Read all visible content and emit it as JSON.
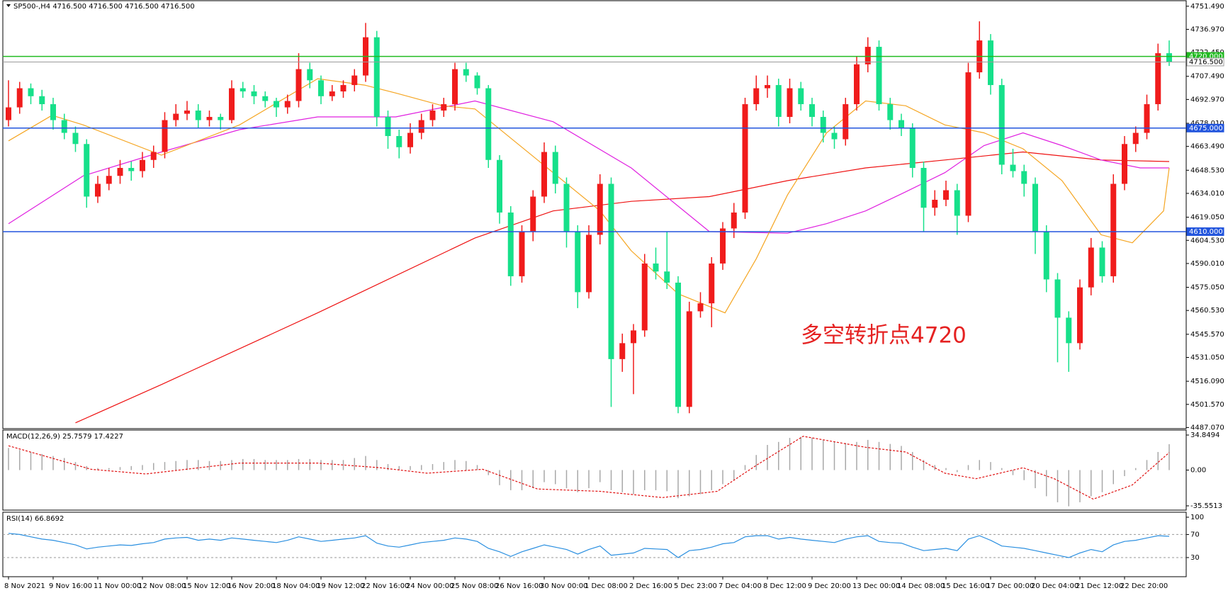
{
  "chart_data": {
    "type": "candlestick",
    "title": "SP500-,H4  4716.500 4716.500 4716.500 4716.500",
    "annotation": "多空转折点4720",
    "up_color": "#f01c1c",
    "down_color": "#16e08a",
    "ylim": [
      4486.8,
      4754.5
    ],
    "yticks": [
      {
        "value": 4751.49,
        "label": "4751.490"
      },
      {
        "value": 4736.97,
        "label": "4736.970"
      },
      {
        "value": 4722.45,
        "label": "4722.450"
      },
      {
        "value": 4707.49,
        "label": "4707.490"
      },
      {
        "value": 4692.97,
        "label": "4692.970"
      },
      {
        "value": 4678.01,
        "label": "4678.010"
      },
      {
        "value": 4663.49,
        "label": "4663.490"
      },
      {
        "value": 4648.53,
        "label": "4648.530"
      },
      {
        "value": 4634.01,
        "label": "4634.010"
      },
      {
        "value": 4619.05,
        "label": "4619.050"
      },
      {
        "value": 4604.53,
        "label": "4604.530"
      },
      {
        "value": 4590.01,
        "label": "4590.010"
      },
      {
        "value": 4575.05,
        "label": "4575.050"
      },
      {
        "value": 4560.53,
        "label": "4560.530"
      },
      {
        "value": 4545.57,
        "label": "4545.570"
      },
      {
        "value": 4531.05,
        "label": "4531.050"
      },
      {
        "value": 4516.09,
        "label": "4516.090"
      },
      {
        "value": 4501.57,
        "label": "4501.570"
      },
      {
        "value": 4487.07,
        "label": "4487.070"
      }
    ],
    "levels": [
      {
        "value": 4720,
        "label": "4720.000",
        "color": "#22bb22"
      },
      {
        "value": 4716.5,
        "label": "4716.500",
        "color": "#9a9a9a"
      },
      {
        "value": 4675,
        "label": "4675.000",
        "color": "#2255dd"
      },
      {
        "value": 4610,
        "label": "4610.000",
        "color": "#2255dd"
      }
    ],
    "categories": [
      "8 Nov 2021",
      null,
      null,
      null,
      "9 Nov 16:00",
      null,
      null,
      null,
      "11 Nov 00:00",
      null,
      null,
      null,
      "12 Nov 08:00",
      null,
      null,
      null,
      "15 Nov 12:00",
      null,
      null,
      null,
      "16 Nov 20:00",
      null,
      null,
      null,
      "18 Nov 04:00",
      null,
      null,
      null,
      "19 Nov 12:00",
      null,
      null,
      null,
      "22 Nov 16:00",
      null,
      null,
      null,
      "24 Nov 00:00",
      null,
      null,
      null,
      "25 Nov 08:00",
      null,
      null,
      null,
      "26 Nov 16:00",
      null,
      null,
      null,
      "30 Nov 00:00",
      null,
      null,
      null,
      "1 Dec 08:00",
      null,
      null,
      null,
      "2 Dec 16:00",
      null,
      null,
      null,
      "5 Dec 23:00",
      null,
      null,
      null,
      "7 Dec 04:00",
      null,
      null,
      null,
      "8 Dec 12:00",
      null,
      null,
      null,
      "9 Dec 20:00",
      null,
      null,
      null,
      "13 Dec 00:00",
      null,
      null,
      null,
      "14 Dec 08:00",
      null,
      null,
      null,
      "15 Dec 16:00",
      null,
      null,
      null,
      "17 Dec 00:00",
      null,
      null,
      null,
      "20 Dec 04:00",
      null,
      null,
      null,
      "21 Dec 12:00",
      null,
      null,
      null,
      "22 Dec 20:00",
      null,
      null,
      null,
      null
    ],
    "candles": [
      [
        4680,
        4705,
        4676,
        4688
      ],
      [
        4688,
        4704,
        4684,
        4700
      ],
      [
        4700,
        4703,
        4690,
        4695
      ],
      [
        4695,
        4699,
        4686,
        4690
      ],
      [
        4690,
        4694,
        4674,
        4680
      ],
      [
        4680,
        4684,
        4668,
        4672
      ],
      [
        4672,
        4676,
        4660,
        4665
      ],
      [
        4665,
        4668,
        4625,
        4632
      ],
      [
        4632,
        4645,
        4628,
        4640
      ],
      [
        4640,
        4650,
        4636,
        4645
      ],
      [
        4645,
        4655,
        4640,
        4650
      ],
      [
        4650,
        4654,
        4642,
        4648
      ],
      [
        4648,
        4660,
        4644,
        4655
      ],
      [
        4655,
        4664,
        4650,
        4660
      ],
      [
        4660,
        4685,
        4656,
        4680
      ],
      [
        4680,
        4690,
        4676,
        4684
      ],
      [
        4684,
        4692,
        4680,
        4686
      ],
      [
        4686,
        4690,
        4675,
        4680
      ],
      [
        4680,
        4686,
        4676,
        4682
      ],
      [
        4682,
        4684,
        4674,
        4680
      ],
      [
        4680,
        4705,
        4678,
        4700
      ],
      [
        4700,
        4704,
        4694,
        4698
      ],
      [
        4698,
        4702,
        4690,
        4695
      ],
      [
        4695,
        4698,
        4688,
        4692
      ],
      [
        4692,
        4694,
        4682,
        4688
      ],
      [
        4688,
        4696,
        4684,
        4692
      ],
      [
        4692,
        4722,
        4688,
        4712
      ],
      [
        4712,
        4716,
        4700,
        4705
      ],
      [
        4705,
        4708,
        4690,
        4695
      ],
      [
        4695,
        4702,
        4692,
        4698
      ],
      [
        4698,
        4705,
        4694,
        4702
      ],
      [
        4702,
        4712,
        4698,
        4708
      ],
      [
        4708,
        4741,
        4704,
        4732
      ],
      [
        4732,
        4736,
        4676,
        4682
      ],
      [
        4682,
        4686,
        4662,
        4670
      ],
      [
        4670,
        4674,
        4656,
        4663
      ],
      [
        4663,
        4678,
        4659,
        4672
      ],
      [
        4672,
        4684,
        4668,
        4680
      ],
      [
        4680,
        4690,
        4676,
        4686
      ],
      [
        4686,
        4694,
        4682,
        4690
      ],
      [
        4690,
        4716,
        4686,
        4712
      ],
      [
        4712,
        4716,
        4704,
        4708
      ],
      [
        4708,
        4710,
        4696,
        4700
      ],
      [
        4700,
        4702,
        4650,
        4655
      ],
      [
        4655,
        4658,
        4615,
        4622
      ],
      [
        4622,
        4626,
        4576,
        4582
      ],
      [
        4582,
        4614,
        4578,
        4610
      ],
      [
        4610,
        4636,
        4604,
        4632
      ],
      [
        4632,
        4666,
        4628,
        4660
      ],
      [
        4660,
        4664,
        4634,
        4640
      ],
      [
        4640,
        4644,
        4600,
        4610
      ],
      [
        4610,
        4614,
        4562,
        4572
      ],
      [
        4572,
        4614,
        4568,
        4608
      ],
      [
        4608,
        4646,
        4602,
        4640
      ],
      [
        4640,
        4644,
        4500,
        4530
      ],
      [
        4530,
        4546,
        4522,
        4540
      ],
      [
        4540,
        4552,
        4508,
        4548
      ],
      [
        4548,
        4596,
        4544,
        4590
      ],
      [
        4590,
        4600,
        4580,
        4585
      ],
      [
        4585,
        4610,
        4574,
        4578
      ],
      [
        4578,
        4582,
        4496,
        4500
      ],
      [
        4500,
        4566,
        4496,
        4560
      ],
      [
        4560,
        4572,
        4556,
        4565
      ],
      [
        4565,
        4594,
        4550,
        4590
      ],
      [
        4590,
        4616,
        4586,
        4612
      ],
      [
        4612,
        4628,
        4606,
        4622
      ],
      [
        4622,
        4694,
        4618,
        4690
      ],
      [
        4690,
        4708,
        4686,
        4700
      ],
      [
        4700,
        4708,
        4694,
        4702
      ],
      [
        4702,
        4706,
        4676,
        4682
      ],
      [
        4682,
        4706,
        4678,
        4700
      ],
      [
        4700,
        4704,
        4686,
        4690
      ],
      [
        4690,
        4694,
        4676,
        4682
      ],
      [
        4682,
        4686,
        4666,
        4672
      ],
      [
        4672,
        4676,
        4662,
        4668
      ],
      [
        4668,
        4694,
        4664,
        4690
      ],
      [
        4690,
        4720,
        4686,
        4715
      ],
      [
        4715,
        4732,
        4710,
        4726
      ],
      [
        4726,
        4730,
        4686,
        4690
      ],
      [
        4690,
        4694,
        4674,
        4680
      ],
      [
        4680,
        4684,
        4670,
        4675
      ],
      [
        4675,
        4678,
        4644,
        4650
      ],
      [
        4650,
        4654,
        4610,
        4625
      ],
      [
        4625,
        4636,
        4620,
        4630
      ],
      [
        4630,
        4642,
        4626,
        4636
      ],
      [
        4636,
        4640,
        4608,
        4620
      ],
      [
        4620,
        4716,
        4616,
        4710
      ],
      [
        4710,
        4742,
        4706,
        4730
      ],
      [
        4730,
        4734,
        4696,
        4702
      ],
      [
        4702,
        4706,
        4646,
        4652
      ],
      [
        4652,
        4662,
        4644,
        4648
      ],
      [
        4648,
        4652,
        4632,
        4640
      ],
      [
        4640,
        4644,
        4596,
        4610
      ],
      [
        4610,
        4614,
        4572,
        4580
      ],
      [
        4580,
        4584,
        4528,
        4556
      ],
      [
        4556,
        4560,
        4522,
        4540
      ],
      [
        4540,
        4580,
        4536,
        4575
      ],
      [
        4575,
        4606,
        4570,
        4600
      ],
      [
        4600,
        4604,
        4578,
        4582
      ],
      [
        4582,
        4646,
        4578,
        4640
      ],
      [
        4640,
        4670,
        4636,
        4665
      ],
      [
        4665,
        4676,
        4660,
        4672
      ],
      [
        4672,
        4696,
        4668,
        4690
      ],
      [
        4690,
        4728,
        4686,
        4722
      ],
      [
        4722,
        4730,
        4714,
        4716.5
      ]
    ],
    "moving_averages": [
      {
        "color": "#ee1111",
        "x": [
          6,
          13.7,
          27.7,
          41.8,
          48.8,
          55.8,
          62.8,
          69.8,
          76.8,
          83.9,
          90.9,
          97.9,
          104
        ],
        "values": [
          4490,
          4514,
          4559,
          4606,
          4623,
          4629,
          4632,
          4642,
          4650,
          4655,
          4660,
          4655,
          4654
        ]
      },
      {
        "color": "#e020e0",
        "x": [
          0,
          6.7,
          13.7,
          20.7,
          27.7,
          34.7,
          41.8,
          48.8,
          55.8,
          62.8,
          69.8,
          73.3,
          76.8,
          80.4,
          83.9,
          87.4,
          90.9,
          94.4,
          97.9,
          101.4,
          104
        ],
        "values": [
          4615,
          4645,
          4660,
          4674,
          4682,
          4682,
          4692,
          4679,
          4650,
          4610,
          4609,
          4615,
          4623,
          4635,
          4647,
          4664,
          4672,
          4664,
          4655,
          4650,
          4650
        ]
      },
      {
        "color": "#f5a623",
        "x": [
          0,
          3.9,
          6.7,
          13.7,
          20.7,
          27.7,
          31.9,
          34.7,
          38.9,
          41.8,
          45.3,
          48.8,
          53,
          55.8,
          60,
          64.2,
          67,
          69.8,
          73.3,
          76.8,
          80.4,
          83.9,
          87.4,
          90.9,
          94.4,
          97.9,
          100.7,
          103.5,
          104
        ],
        "values": [
          4667,
          4683,
          4677,
          4658,
          4677,
          4706,
          4702,
          4697,
          4689,
          4687,
          4667,
          4647,
          4623,
          4598,
          4571,
          4559,
          4593,
          4633,
          4672,
          4692,
          4689,
          4677,
          4672,
          4662,
          4642,
          4608,
          4603,
          4623,
          4650
        ]
      }
    ],
    "macd": {
      "title": "MACD(12,26,9) 25.7579 17.4227",
      "ylim": [
        -39.8,
        39.1
      ],
      "yticks": [
        34.8494,
        {
          "value": 0,
          "label": "0.00"
        },
        -35.5513
      ],
      "histogram_color": "#a8a8a8",
      "signal_color": "#e01010",
      "histogram": [
        22,
        20,
        18,
        16,
        14,
        12,
        8,
        4,
        2,
        2,
        3,
        4,
        5,
        7,
        8,
        9,
        10,
        10,
        9,
        9,
        10,
        11,
        11,
        10,
        10,
        10,
        11,
        11,
        10,
        10,
        10,
        12,
        14,
        10,
        6,
        4,
        4,
        5,
        6,
        8,
        10,
        9,
        5,
        -5,
        -15,
        -20,
        -20,
        -18,
        -12,
        -14,
        -18,
        -22,
        -18,
        -12,
        -20,
        -22,
        -24,
        -20,
        -20,
        -21,
        -28,
        -26,
        -24,
        -20,
        -14,
        -10,
        5,
        15,
        25,
        28,
        32,
        33,
        32,
        30,
        28,
        27,
        28,
        30,
        28,
        26,
        24,
        18,
        10,
        5,
        2,
        -2,
        5,
        10,
        8,
        2,
        -5,
        -10,
        -18,
        -26,
        -32,
        -36,
        -32,
        -26,
        -22,
        -14,
        -6,
        2,
        10,
        18,
        25.7579
      ],
      "signal": {
        "x": [
          0,
          7.4,
          12.3,
          20.7,
          27.7,
          33.3,
          37.5,
          42.5,
          47.4,
          53,
          58.6,
          63.5,
          67,
          71.2,
          76.8,
          80.4,
          83.9,
          86.7,
          90.9,
          93.7,
          97.2,
          100.7,
          104
        ],
        "values": [
          24.2,
          0.8,
          -3.9,
          7,
          7,
          2.3,
          -3.1,
          0.8,
          -18.8,
          -21.1,
          -27.3,
          -21.1,
          4.7,
          33.6,
          22.7,
          18,
          -3.1,
          -8.6,
          2.3,
          -8.6,
          -28.9,
          -14.8,
          17.4227
        ]
      }
    },
    "rsi": {
      "title": "RSI(14) 66.8692",
      "ylim": [
        -3.2,
        107.4
      ],
      "yticks": [
        100,
        70,
        30
      ],
      "levels": [
        70,
        30
      ],
      "color": "#2a8fe0",
      "values": [
        72,
        70,
        66,
        62,
        60,
        56,
        52,
        45,
        48,
        50,
        52,
        51,
        54,
        56,
        62,
        64,
        65,
        60,
        62,
        60,
        64,
        62,
        60,
        58,
        56,
        60,
        66,
        62,
        58,
        60,
        62,
        64,
        68,
        55,
        50,
        48,
        52,
        56,
        58,
        60,
        64,
        62,
        58,
        46,
        40,
        32,
        40,
        46,
        52,
        48,
        44,
        36,
        44,
        50,
        34,
        36,
        38,
        46,
        45,
        44,
        30,
        42,
        44,
        48,
        54,
        56,
        66,
        68,
        68,
        62,
        65,
        62,
        60,
        58,
        56,
        62,
        66,
        68,
        58,
        56,
        55,
        48,
        42,
        44,
        46,
        42,
        62,
        68,
        60,
        50,
        48,
        46,
        42,
        38,
        34,
        30,
        38,
        44,
        40,
        52,
        58,
        60,
        64,
        68,
        66.8692
      ]
    }
  }
}
